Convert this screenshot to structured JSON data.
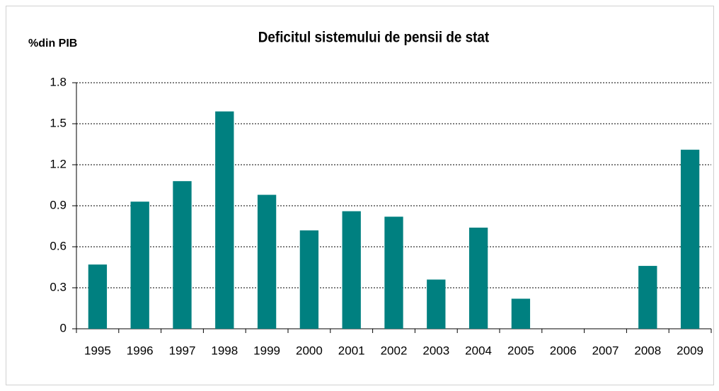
{
  "chart_data": {
    "type": "bar",
    "title": "Deficitul sistemului de pensii de stat",
    "y_label": "%din PIB",
    "categories": [
      "1995",
      "1996",
      "1997",
      "1998",
      "1999",
      "2000",
      "2001",
      "2002",
      "2003",
      "2004",
      "2005",
      "2006",
      "2007",
      "2008",
      "2009"
    ],
    "values": [
      0.47,
      0.93,
      1.08,
      1.59,
      0.98,
      0.72,
      0.86,
      0.82,
      0.36,
      0.74,
      0.22,
      0,
      0,
      0.46,
      1.31
    ],
    "color": "#008080",
    "ylim": [
      0,
      1.8
    ],
    "yticks": [
      0,
      0.3,
      0.6,
      0.9,
      1.2,
      1.5,
      1.8
    ],
    "grid": true
  }
}
